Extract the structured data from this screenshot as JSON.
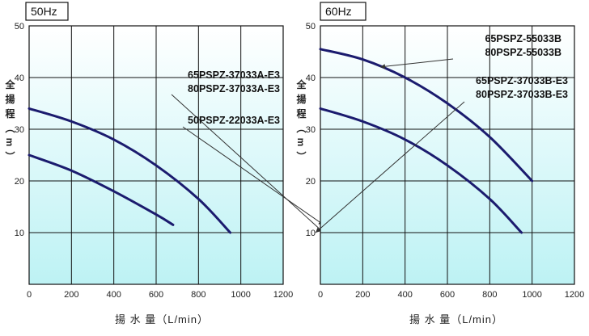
{
  "chart_data": [
    {
      "type": "line",
      "title": "50Hz",
      "xlabel": "揚 水 量（L/min）",
      "ylabel": "全揚程（m）",
      "xlim": [
        0,
        1200
      ],
      "ylim": [
        0,
        50
      ],
      "xticks": [
        "0",
        "200",
        "400",
        "600",
        "800",
        "1000",
        "1200"
      ],
      "yticks": [
        "10",
        "20",
        "30",
        "40",
        "50"
      ],
      "grid": true,
      "background": "gradient light cyan (bottom) to white (top)",
      "line_color": "#1b1b6e",
      "series": [
        {
          "labels": [
            "65PSPZ-37033A-E3",
            "80PSPZ-37033A-E3"
          ],
          "x": [
            0,
            200,
            400,
            600,
            800,
            950
          ],
          "y": [
            34,
            31.5,
            28,
            23,
            16.5,
            10
          ]
        },
        {
          "labels": [
            "50PSPZ-22033A-E3"
          ],
          "x": [
            0,
            200,
            400,
            600,
            680
          ],
          "y": [
            25,
            22,
            18,
            13.5,
            11.5
          ]
        }
      ]
    },
    {
      "type": "line",
      "title": "60Hz",
      "xlabel": "揚 水 量（L/min）",
      "ylabel": "全揚程（m）",
      "xlim": [
        0,
        1200
      ],
      "ylim": [
        0,
        50
      ],
      "xticks": [
        "0",
        "200",
        "400",
        "600",
        "800",
        "1000",
        "1200"
      ],
      "yticks": [
        "10",
        "20",
        "30",
        "40",
        "50"
      ],
      "grid": true,
      "background": "gradient light cyan (bottom) to white (top)",
      "line_color": "#1b1b6e",
      "series": [
        {
          "labels": [
            "65PSPZ-55033B",
            "80PSPZ-55033B"
          ],
          "x": [
            0,
            200,
            400,
            600,
            800,
            1000
          ],
          "y": [
            45.5,
            43.5,
            40,
            35,
            28.5,
            20
          ]
        },
        {
          "labels": [
            "65PSPZ-37033B-E3",
            "80PSPZ-37033B-E3"
          ],
          "x": [
            0,
            200,
            400,
            600,
            800,
            950
          ],
          "y": [
            34,
            31.5,
            28,
            23,
            16.5,
            10
          ]
        }
      ]
    }
  ]
}
